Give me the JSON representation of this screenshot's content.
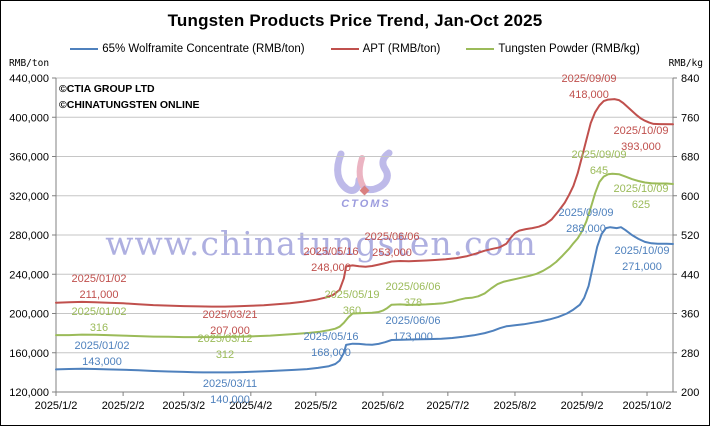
{
  "title": "Tungsten Products Price Trend, Jan-Oct 2025",
  "units": {
    "left": "RMB/ton",
    "right": "RMB/kg"
  },
  "copyright": {
    "line1": "©CTIA GROUP LTD",
    "line2": "©CHINATUNGSTEN ONLINE"
  },
  "watermark": {
    "url": "www.chinatungsten.com",
    "logo_text": "CTOMS"
  },
  "legend": {
    "items": [
      {
        "label": "65% Wolframite Concentrate (RMB/ton)",
        "color": "#4F81BD"
      },
      {
        "label": "APT (RMB/ton)",
        "color": "#C0504D"
      },
      {
        "label": "Tungsten Powder (RMB/kg)",
        "color": "#9BBB59"
      }
    ]
  },
  "chart_data": {
    "type": "line",
    "title": "Tungsten Products Price Trend, Jan-Oct 2025",
    "grid": true,
    "legend_position": "top",
    "x_axis": {
      "note": "days elapsed since 2025/1/2; data span Jan 2 - mid Oct 2025",
      "ticks": [
        {
          "day": 0,
          "label": "2025/1/2"
        },
        {
          "day": 31,
          "label": "2025/2/2"
        },
        {
          "day": 59,
          "label": "2025/3/2"
        },
        {
          "day": 90,
          "label": "2025/4/2"
        },
        {
          "day": 120,
          "label": "2025/5/2"
        },
        {
          "day": 151,
          "label": "2025/6/2"
        },
        {
          "day": 181,
          "label": "2025/7/2"
        },
        {
          "day": 212,
          "label": "2025/8/2"
        },
        {
          "day": 243,
          "label": "2025/9/2"
        },
        {
          "day": 273,
          "label": "2025/10/2"
        }
      ]
    },
    "left_axis": {
      "label": "RMB/ton",
      "min": 120000,
      "max": 440000,
      "step": 40000,
      "ticks": [
        {
          "value": 440000,
          "label": "440,000"
        },
        {
          "value": 400000,
          "label": "400,000"
        },
        {
          "value": 360000,
          "label": "360,000"
        },
        {
          "value": 320000,
          "label": "320,000"
        },
        {
          "value": 280000,
          "label": "280,000"
        },
        {
          "value": 240000,
          "label": "240,000"
        },
        {
          "value": 200000,
          "label": "200,000"
        },
        {
          "value": 160000,
          "label": "160,000"
        },
        {
          "value": 120000,
          "label": "120,000"
        }
      ]
    },
    "right_axis": {
      "label": "RMB/kg",
      "min": 200,
      "max": 840,
      "step": 80,
      "ticks": [
        {
          "value": 840,
          "label": "840"
        },
        {
          "value": 760,
          "label": "760"
        },
        {
          "value": 680,
          "label": "680"
        },
        {
          "value": 600,
          "label": "600"
        },
        {
          "value": 520,
          "label": "520"
        },
        {
          "value": 440,
          "label": "440"
        },
        {
          "value": 360,
          "label": "360"
        },
        {
          "value": 280,
          "label": "280"
        },
        {
          "value": 200,
          "label": "200"
        }
      ]
    },
    "series": [
      {
        "name": "65% Wolframite Concentrate (RMB/ton)",
        "color": "#4F81BD",
        "axis": "left",
        "points": [
          [
            0,
            143000
          ],
          [
            6,
            143400
          ],
          [
            12,
            143600
          ],
          [
            18,
            143400
          ],
          [
            24,
            143000
          ],
          [
            31,
            142700
          ],
          [
            38,
            142100
          ],
          [
            45,
            141400
          ],
          [
            52,
            140900
          ],
          [
            59,
            140500
          ],
          [
            64,
            140200
          ],
          [
            68,
            140000
          ],
          [
            74,
            140000
          ],
          [
            80,
            140000
          ],
          [
            86,
            140300
          ],
          [
            92,
            140800
          ],
          [
            98,
            141300
          ],
          [
            104,
            141900
          ],
          [
            110,
            142500
          ],
          [
            116,
            143300
          ],
          [
            121,
            144600
          ],
          [
            126,
            146300
          ],
          [
            129,
            148500
          ],
          [
            131,
            152000
          ],
          [
            133,
            160000
          ],
          [
            134,
            168000
          ],
          [
            137,
            169200
          ],
          [
            140,
            169000
          ],
          [
            143,
            168400
          ],
          [
            146,
            168200
          ],
          [
            149,
            169000
          ],
          [
            152,
            170800
          ],
          [
            155,
            173000
          ],
          [
            160,
            173300
          ],
          [
            166,
            173600
          ],
          [
            172,
            173900
          ],
          [
            178,
            174200
          ],
          [
            183,
            175000
          ],
          [
            188,
            176300
          ],
          [
            193,
            177800
          ],
          [
            198,
            180000
          ],
          [
            202,
            182500
          ],
          [
            205,
            185000
          ],
          [
            208,
            187000
          ],
          [
            212,
            188000
          ],
          [
            216,
            189000
          ],
          [
            220,
            190500
          ],
          [
            224,
            192000
          ],
          [
            228,
            194000
          ],
          [
            232,
            196500
          ],
          [
            236,
            200000
          ],
          [
            239,
            204000
          ],
          [
            242,
            209000
          ],
          [
            244,
            216000
          ],
          [
            246,
            228000
          ],
          [
            248,
            248000
          ],
          [
            250,
            268000
          ],
          [
            252,
            281000
          ],
          [
            254,
            287000
          ],
          [
            256,
            288000
          ],
          [
            259,
            287000
          ],
          [
            261,
            288000
          ],
          [
            263,
            285000
          ],
          [
            266,
            280000
          ],
          [
            269,
            276000
          ],
          [
            272,
            273000
          ],
          [
            275,
            271500
          ],
          [
            278,
            271000
          ],
          [
            282,
            271000
          ],
          [
            285,
            270800
          ]
        ],
        "annotations": [
          {
            "date": "2025/01/02",
            "value": "143,000",
            "x": 101,
            "y": 337
          },
          {
            "date": "2025/03/11",
            "value": "140,000",
            "x": 229,
            "y": 375
          },
          {
            "date": "2025/05/16",
            "value": "168,000",
            "x": 330,
            "y": 328
          },
          {
            "date": "2025/06/06",
            "value": "173,000",
            "x": 412,
            "y": 312
          },
          {
            "date": "2025/09/09",
            "value": "288,000",
            "x": 585,
            "y": 204
          },
          {
            "date": "2025/10/09",
            "value": "271,000",
            "x": 641,
            "y": 242
          }
        ]
      },
      {
        "name": "APT (RMB/ton)",
        "color": "#C0504D",
        "axis": "left",
        "points": [
          [
            0,
            211000
          ],
          [
            6,
            211400
          ],
          [
            12,
            211800
          ],
          [
            18,
            211500
          ],
          [
            24,
            211000
          ],
          [
            31,
            210400
          ],
          [
            38,
            209500
          ],
          [
            45,
            208600
          ],
          [
            52,
            208000
          ],
          [
            59,
            207500
          ],
          [
            66,
            207200
          ],
          [
            72,
            207000
          ],
          [
            78,
            207000
          ],
          [
            84,
            207300
          ],
          [
            90,
            207800
          ],
          [
            96,
            208500
          ],
          [
            102,
            209400
          ],
          [
            108,
            210500
          ],
          [
            114,
            212000
          ],
          [
            120,
            214000
          ],
          [
            125,
            216500
          ],
          [
            128,
            219000
          ],
          [
            131,
            224000
          ],
          [
            133,
            236000
          ],
          [
            134,
            248000
          ],
          [
            137,
            249000
          ],
          [
            140,
            248200
          ],
          [
            143,
            247600
          ],
          [
            146,
            248400
          ],
          [
            149,
            249800
          ],
          [
            152,
            251400
          ],
          [
            155,
            253000
          ],
          [
            159,
            253500
          ],
          [
            163,
            253200
          ],
          [
            167,
            253600
          ],
          [
            171,
            254000
          ],
          [
            175,
            254500
          ],
          [
            180,
            255200
          ],
          [
            185,
            256500
          ],
          [
            190,
            258500
          ],
          [
            194,
            261000
          ],
          [
            198,
            264000
          ],
          [
            202,
            266000
          ],
          [
            205,
            267500
          ],
          [
            208,
            271000
          ],
          [
            210,
            277000
          ],
          [
            212,
            282000
          ],
          [
            214,
            284500
          ],
          [
            217,
            286000
          ],
          [
            220,
            287000
          ],
          [
            223,
            288500
          ],
          [
            226,
            291000
          ],
          [
            229,
            296000
          ],
          [
            232,
            304000
          ],
          [
            235,
            313000
          ],
          [
            237,
            321000
          ],
          [
            239,
            330000
          ],
          [
            241,
            343000
          ],
          [
            243,
            360000
          ],
          [
            245,
            377000
          ],
          [
            247,
            394000
          ],
          [
            249,
            405000
          ],
          [
            251,
            412000
          ],
          [
            253,
            416500
          ],
          [
            255,
            418000
          ],
          [
            258,
            418500
          ],
          [
            260,
            417500
          ],
          [
            262,
            414500
          ],
          [
            264,
            410500
          ],
          [
            266,
            406500
          ],
          [
            268,
            402500
          ],
          [
            270,
            399000
          ],
          [
            272,
            396500
          ],
          [
            274,
            394500
          ],
          [
            276,
            393200
          ],
          [
            279,
            393000
          ],
          [
            285,
            392800
          ]
        ],
        "annotations": [
          {
            "date": "2025/01/02",
            "value": "211,000",
            "x": 98,
            "y": 270
          },
          {
            "date": "2025/03/21",
            "value": "207,000",
            "x": 229,
            "y": 306
          },
          {
            "date": "2025/05/16",
            "value": "248,000",
            "x": 330,
            "y": 243
          },
          {
            "date": "2025/06/06",
            "value": "253,000",
            "x": 391,
            "y": 228
          },
          {
            "date": "2025/09/09",
            "value": "418,000",
            "x": 588,
            "y": 70
          },
          {
            "date": "2025/10/09",
            "value": "393,000",
            "x": 640,
            "y": 122
          }
        ]
      },
      {
        "name": "Tungsten Powder (RMB/kg)",
        "color": "#9BBB59",
        "axis": "right",
        "points": [
          [
            0,
            316
          ],
          [
            6,
            316
          ],
          [
            12,
            317
          ],
          [
            18,
            316.5
          ],
          [
            24,
            316
          ],
          [
            31,
            315
          ],
          [
            38,
            314
          ],
          [
            45,
            313
          ],
          [
            52,
            312.5
          ],
          [
            59,
            312
          ],
          [
            64,
            312
          ],
          [
            69,
            312
          ],
          [
            75,
            312
          ],
          [
            81,
            312.5
          ],
          [
            87,
            313
          ],
          [
            93,
            314
          ],
          [
            99,
            315
          ],
          [
            105,
            316.5
          ],
          [
            111,
            318.5
          ],
          [
            117,
            320.5
          ],
          [
            122,
            323
          ],
          [
            126,
            326
          ],
          [
            129,
            329
          ],
          [
            131,
            333
          ],
          [
            133,
            341
          ],
          [
            135,
            352
          ],
          [
            137,
            360
          ],
          [
            140,
            360.5
          ],
          [
            143,
            361
          ],
          [
            146,
            361.5
          ],
          [
            149,
            363
          ],
          [
            151,
            366
          ],
          [
            153,
            371
          ],
          [
            155,
            378
          ],
          [
            159,
            378.5
          ],
          [
            163,
            377.5
          ],
          [
            167,
            378
          ],
          [
            171,
            378.5
          ],
          [
            175,
            379.5
          ],
          [
            179,
            381
          ],
          [
            183,
            384
          ],
          [
            186,
            388
          ],
          [
            189,
            391
          ],
          [
            192,
            392
          ],
          [
            195,
            395
          ],
          [
            198,
            401
          ],
          [
            201,
            411
          ],
          [
            204,
            420
          ],
          [
            207,
            425
          ],
          [
            210,
            428
          ],
          [
            213,
            431
          ],
          [
            216,
            434
          ],
          [
            219,
            437
          ],
          [
            222,
            441
          ],
          [
            225,
            447
          ],
          [
            228,
            455
          ],
          [
            231,
            465
          ],
          [
            234,
            478
          ],
          [
            237,
            492
          ],
          [
            239,
            503
          ],
          [
            241,
            513
          ],
          [
            243,
            528
          ],
          [
            245,
            548
          ],
          [
            247,
            575
          ],
          [
            249,
            605
          ],
          [
            251,
            628
          ],
          [
            253,
            639
          ],
          [
            255,
            644
          ],
          [
            257,
            645
          ],
          [
            260,
            644
          ],
          [
            263,
            639
          ],
          [
            266,
            634
          ],
          [
            269,
            630
          ],
          [
            272,
            627
          ],
          [
            275,
            625.5
          ],
          [
            278,
            625
          ],
          [
            282,
            625
          ],
          [
            285,
            624
          ]
        ],
        "annotations": [
          {
            "date": "2025/01/02",
            "value": "316",
            "x": 98,
            "y": 303
          },
          {
            "date": "2025/03/12",
            "value": "312",
            "x": 224,
            "y": 330
          },
          {
            "date": "2025/05/19",
            "value": "360",
            "x": 351,
            "y": 286
          },
          {
            "date": "2025/06/06",
            "value": "378",
            "x": 412,
            "y": 278
          },
          {
            "date": "2025/09/09",
            "value": "645",
            "x": 598,
            "y": 146
          },
          {
            "date": "2025/10/09",
            "value": "625",
            "x": 640,
            "y": 180
          }
        ]
      }
    ]
  }
}
